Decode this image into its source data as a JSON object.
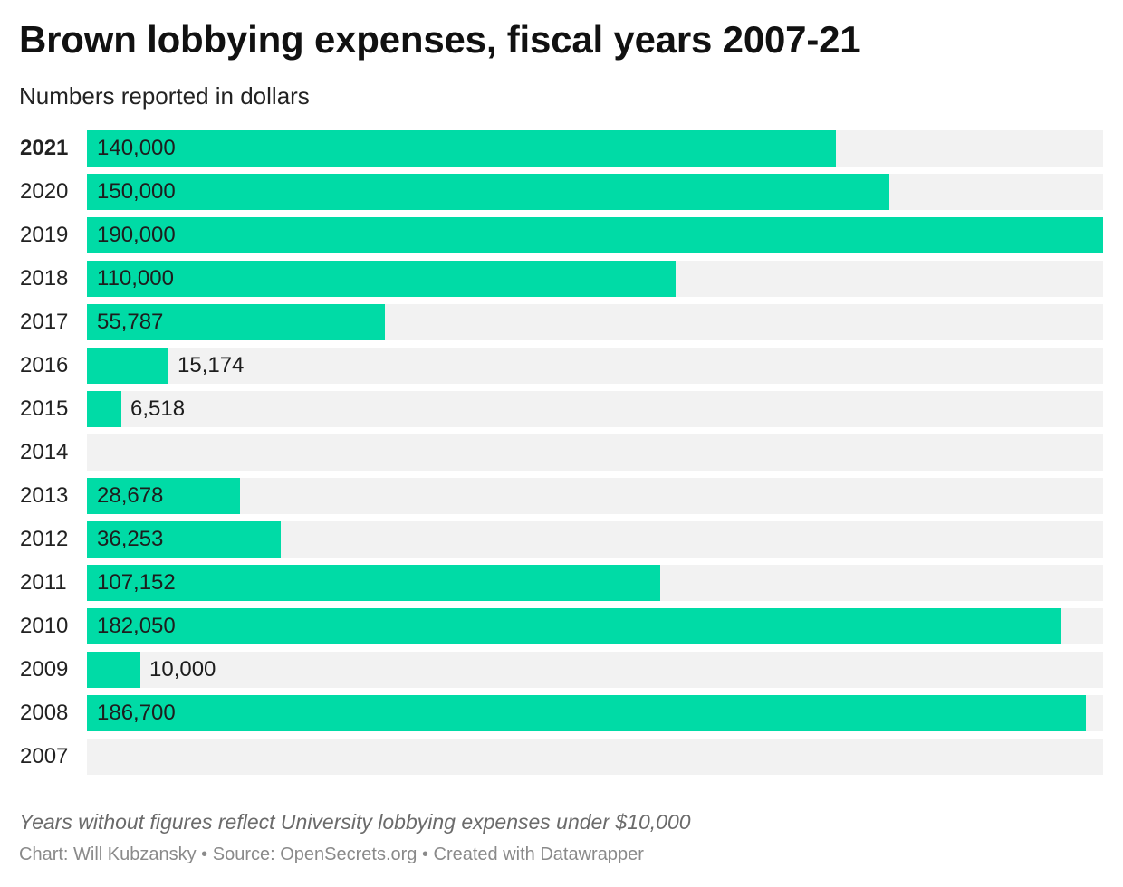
{
  "chart_data": {
    "type": "bar",
    "orientation": "horizontal",
    "title": "Brown lobbying expenses, fiscal years 2007-21",
    "subtitle": "Numbers reported in dollars",
    "categories": [
      "2021",
      "2020",
      "2019",
      "2018",
      "2017",
      "2016",
      "2015",
      "2014",
      "2013",
      "2012",
      "2011",
      "2010",
      "2009",
      "2008",
      "2007"
    ],
    "values": [
      140000,
      150000,
      190000,
      110000,
      55787,
      15174,
      6518,
      null,
      28678,
      36253,
      107152,
      182050,
      10000,
      186700,
      null
    ],
    "value_labels": [
      "140,000",
      "150,000",
      "190,000",
      "110,000",
      "55,787",
      "15,174",
      "6,518",
      "",
      "28,678",
      "36,253",
      "107,152",
      "182,050",
      "10,000",
      "186,700",
      ""
    ],
    "highlighted_category": "2021",
    "xlim": [
      0,
      190000
    ],
    "bar_color": "#00dba6",
    "track_color": "#f2f2f2",
    "note": "Years without figures reflect University lobbying expenses under $10,000",
    "credit": "Chart: Will Kubzansky • Source: OpenSecrets.org • Created with Datawrapper"
  }
}
